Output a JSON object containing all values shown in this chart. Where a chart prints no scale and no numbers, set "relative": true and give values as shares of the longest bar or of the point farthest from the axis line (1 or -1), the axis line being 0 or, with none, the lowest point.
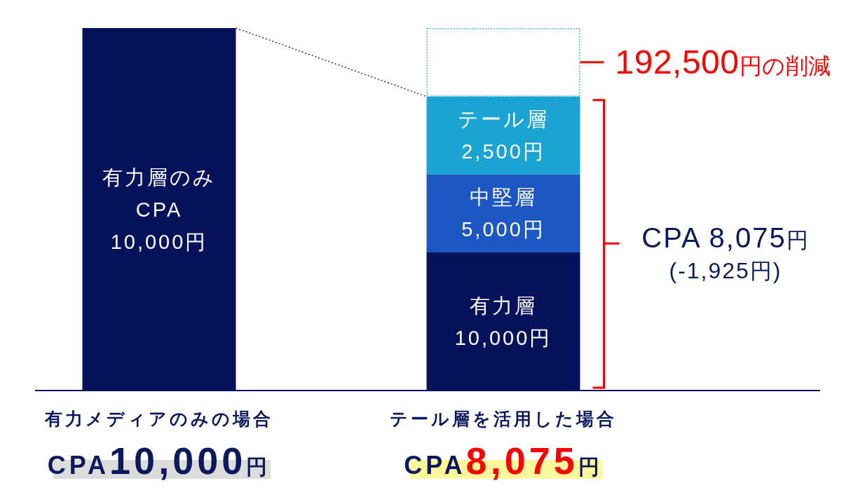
{
  "chart_data": {
    "type": "bar",
    "stacked": true,
    "relative": true,
    "categories": [
      "有力メディアのみの場合",
      "テール層を活用した場合"
    ],
    "series": [
      {
        "name": "有力層のみ\nCPA\n10,000円",
        "color": "#06125c",
        "values": [
          1,
          null
        ]
      },
      {
        "name": "有力層\n10,000円",
        "color": "#06125c",
        "values": [
          null,
          0.381
        ]
      },
      {
        "name": "中堅層\n5,000円",
        "color": "#1c57c4",
        "values": [
          null,
          0.215
        ]
      },
      {
        "name": "テール層\n2,500円",
        "color": "#19a4d4",
        "values": [
          null,
          0.215
        ]
      },
      {
        "name": "192,500円の削減",
        "color": "#2aa8d8",
        "values": [
          null,
          0.189
        ],
        "line_style": "dotted"
      }
    ],
    "annotations": [
      "CPA 8,075円\n(-1,925円)",
      "CPA10,000円",
      "CPA8,075円"
    ]
  }
}
